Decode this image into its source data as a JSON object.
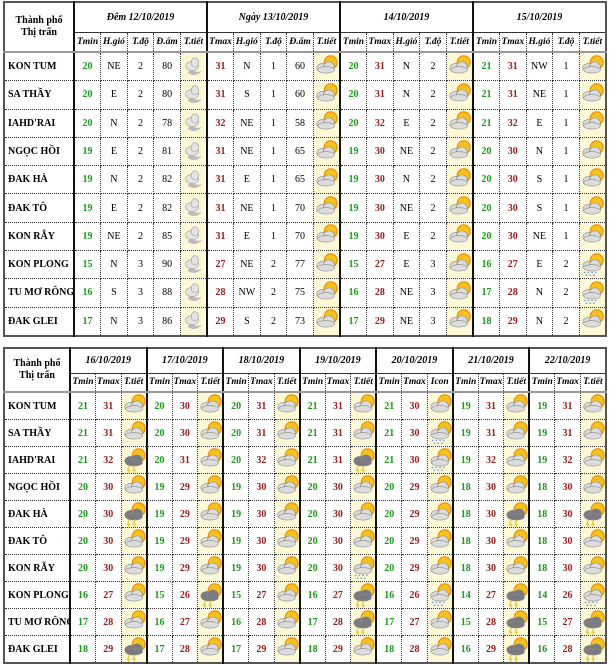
{
  "colors": {
    "tmin": "#1c9a1c",
    "tmax": "#9a1c1c",
    "icon_bg": "#fdf8d6"
  },
  "cities": [
    "KON TUM",
    "SA THẦY",
    "IAHD'RAI",
    "NGỌC HỒI",
    "ĐAK HÀ",
    "ĐAK TÔ",
    "KON RẪY",
    "KON PLONG",
    "TU MƠ RÔNG",
    "ĐAK GLEI"
  ],
  "table1": {
    "city_header": [
      "Thành phố",
      "Thị trấn"
    ],
    "blocks": [
      {
        "title": "Đêm 12/10/2019",
        "columns": [
          "Tmin",
          "H.gió",
          "T.độ",
          "Đ.ẩm",
          "T.tiết"
        ],
        "types": [
          "tmin",
          "t",
          "t",
          "t",
          "ic"
        ],
        "rows": [
          [
            "20",
            "NE",
            "2",
            "80",
            "night-cloud"
          ],
          [
            "20",
            "E",
            "2",
            "80",
            "night-cloud"
          ],
          [
            "20",
            "N",
            "2",
            "78",
            "night-cloud"
          ],
          [
            "19",
            "E",
            "2",
            "81",
            "night-cloud"
          ],
          [
            "19",
            "N",
            "2",
            "82",
            "night-cloud"
          ],
          [
            "19",
            "E",
            "2",
            "82",
            "night-cloud"
          ],
          [
            "19",
            "NE",
            "2",
            "85",
            "night-cloud"
          ],
          [
            "15",
            "N",
            "3",
            "90",
            "night-cloud"
          ],
          [
            "16",
            "S",
            "3",
            "88",
            "night-cloud"
          ],
          [
            "17",
            "N",
            "3",
            "86",
            "night-cloud"
          ]
        ]
      },
      {
        "title": "Ngày 13/10/2019",
        "columns": [
          "Tmax",
          "H.gió",
          "T.độ",
          "Đ.ẩm",
          "T.tiết"
        ],
        "types": [
          "tmax",
          "t",
          "t",
          "t",
          "ic"
        ],
        "rows": [
          [
            "31",
            "N",
            "1",
            "60",
            "partly-cloudy"
          ],
          [
            "31",
            "S",
            "1",
            "60",
            "partly-cloudy"
          ],
          [
            "32",
            "NE",
            "1",
            "58",
            "partly-cloudy"
          ],
          [
            "31",
            "NE",
            "1",
            "65",
            "partly-cloudy"
          ],
          [
            "31",
            "E",
            "1",
            "65",
            "partly-cloudy"
          ],
          [
            "31",
            "NE",
            "1",
            "70",
            "partly-cloudy"
          ],
          [
            "31",
            "E",
            "1",
            "70",
            "partly-cloudy"
          ],
          [
            "27",
            "NE",
            "2",
            "77",
            "partly-cloudy"
          ],
          [
            "28",
            "NW",
            "2",
            "75",
            "partly-cloudy"
          ],
          [
            "29",
            "S",
            "2",
            "73",
            "partly-cloudy"
          ]
        ]
      },
      {
        "title": "14/10/2019",
        "columns": [
          "Tmin",
          "Tmax",
          "H.gió",
          "T.độ",
          "T.tiết"
        ],
        "types": [
          "tmin",
          "tmax",
          "t",
          "t",
          "ic"
        ],
        "rows": [
          [
            "20",
            "31",
            "N",
            "2",
            "partly-cloudy"
          ],
          [
            "20",
            "31",
            "N",
            "2",
            "partly-cloudy"
          ],
          [
            "20",
            "32",
            "E",
            "2",
            "partly-cloudy"
          ],
          [
            "19",
            "30",
            "NE",
            "2",
            "partly-cloudy"
          ],
          [
            "19",
            "30",
            "N",
            "2",
            "partly-cloudy"
          ],
          [
            "19",
            "30",
            "NE",
            "2",
            "partly-cloudy"
          ],
          [
            "19",
            "30",
            "E",
            "2",
            "partly-cloudy"
          ],
          [
            "15",
            "27",
            "E",
            "3",
            "partly-cloudy"
          ],
          [
            "16",
            "28",
            "NE",
            "3",
            "partly-cloudy"
          ],
          [
            "17",
            "29",
            "NE",
            "3",
            "partly-cloudy"
          ]
        ]
      },
      {
        "title": "15/10/2019",
        "columns": [
          "Tmin",
          "Tmax",
          "H.gió",
          "T.độ",
          "T.tiết"
        ],
        "types": [
          "tmin",
          "tmax",
          "t",
          "t",
          "ic"
        ],
        "rows": [
          [
            "21",
            "31",
            "NW",
            "1",
            "partly-cloudy"
          ],
          [
            "21",
            "31",
            "NE",
            "1",
            "partly-cloudy"
          ],
          [
            "21",
            "32",
            "E",
            "1",
            "partly-cloudy"
          ],
          [
            "20",
            "30",
            "N",
            "1",
            "partly-cloudy"
          ],
          [
            "20",
            "30",
            "S",
            "1",
            "partly-cloudy"
          ],
          [
            "20",
            "30",
            "S",
            "1",
            "partly-cloudy"
          ],
          [
            "20",
            "30",
            "NE",
            "1",
            "partly-cloudy"
          ],
          [
            "16",
            "27",
            "E",
            "2",
            "rain"
          ],
          [
            "17",
            "28",
            "N",
            "2",
            "rain"
          ],
          [
            "18",
            "29",
            "N",
            "2",
            "partly-cloudy"
          ]
        ]
      }
    ]
  },
  "table2": {
    "city_header": [
      "Thành phố",
      "Thị trấn"
    ],
    "blocks": [
      {
        "title": "16/10/2019",
        "columns": [
          "Tmin",
          "Tmax",
          "T.tiết"
        ],
        "types": [
          "tmin",
          "tmax",
          "ic"
        ],
        "rows": [
          [
            "21",
            "31",
            "partly-cloudy"
          ],
          [
            "21",
            "31",
            "partly-cloudy"
          ],
          [
            "21",
            "32",
            "thunderstorm"
          ],
          [
            "20",
            "30",
            "partly-cloudy"
          ],
          [
            "20",
            "30",
            "thunderstorm"
          ],
          [
            "20",
            "30",
            "partly-cloudy"
          ],
          [
            "20",
            "30",
            "partly-cloudy"
          ],
          [
            "16",
            "27",
            "partly-cloudy"
          ],
          [
            "17",
            "28",
            "partly-cloudy"
          ],
          [
            "18",
            "29",
            "thunderstorm"
          ]
        ]
      },
      {
        "title": "17/10/2019",
        "columns": [
          "Tmin",
          "Tmax",
          "T.tiết"
        ],
        "types": [
          "tmin",
          "tmax",
          "ic"
        ],
        "rows": [
          [
            "20",
            "30",
            "partly-cloudy"
          ],
          [
            "20",
            "30",
            "partly-cloudy"
          ],
          [
            "20",
            "31",
            "partly-cloudy"
          ],
          [
            "19",
            "29",
            "partly-cloudy"
          ],
          [
            "19",
            "29",
            "partly-cloudy"
          ],
          [
            "19",
            "29",
            "partly-cloudy"
          ],
          [
            "19",
            "29",
            "partly-cloudy"
          ],
          [
            "15",
            "26",
            "thunderstorm"
          ],
          [
            "16",
            "27",
            "partly-cloudy"
          ],
          [
            "17",
            "28",
            "partly-cloudy"
          ]
        ]
      },
      {
        "title": "18/10/2019",
        "columns": [
          "Tmin",
          "Tmax",
          "T.tiết"
        ],
        "types": [
          "tmin",
          "tmax",
          "ic"
        ],
        "rows": [
          [
            "20",
            "31",
            "partly-cloudy"
          ],
          [
            "20",
            "31",
            "partly-cloudy"
          ],
          [
            "20",
            "32",
            "partly-cloudy"
          ],
          [
            "19",
            "30",
            "partly-cloudy"
          ],
          [
            "19",
            "30",
            "partly-cloudy"
          ],
          [
            "19",
            "30",
            "partly-cloudy"
          ],
          [
            "19",
            "30",
            "partly-cloudy"
          ],
          [
            "15",
            "27",
            "partly-cloudy"
          ],
          [
            "16",
            "28",
            "partly-cloudy"
          ],
          [
            "17",
            "29",
            "partly-cloudy"
          ]
        ]
      },
      {
        "title": "19/10/2019",
        "columns": [
          "Tmin",
          "Tmax",
          "T.tiết"
        ],
        "types": [
          "tmin",
          "tmax",
          "ic"
        ],
        "rows": [
          [
            "21",
            "31",
            "partly-cloudy"
          ],
          [
            "21",
            "31",
            "partly-cloudy"
          ],
          [
            "21",
            "31",
            "thunderstorm"
          ],
          [
            "20",
            "30",
            "partly-cloudy"
          ],
          [
            "20",
            "30",
            "partly-cloudy"
          ],
          [
            "20",
            "30",
            "partly-cloudy"
          ],
          [
            "20",
            "30",
            "rain"
          ],
          [
            "16",
            "27",
            "thunderstorm"
          ],
          [
            "17",
            "28",
            "thunderstorm"
          ],
          [
            "18",
            "29",
            "partly-cloudy"
          ]
        ]
      },
      {
        "title": "20/10/2019",
        "columns": [
          "Tmin",
          "Tmax",
          "Icon"
        ],
        "types": [
          "tmin",
          "tmax",
          "ic"
        ],
        "rows": [
          [
            "21",
            "30",
            "partly-cloudy"
          ],
          [
            "21",
            "30",
            "rain"
          ],
          [
            "21",
            "30",
            "rain"
          ],
          [
            "20",
            "29",
            "partly-cloudy"
          ],
          [
            "20",
            "29",
            "partly-cloudy"
          ],
          [
            "20",
            "29",
            "partly-cloudy"
          ],
          [
            "20",
            "29",
            "partly-cloudy"
          ],
          [
            "16",
            "26",
            "rain"
          ],
          [
            "17",
            "27",
            "partly-cloudy"
          ],
          [
            "18",
            "28",
            "partly-cloudy"
          ]
        ]
      },
      {
        "title": "21/10/2019",
        "columns": [
          "Tmin",
          "Tmax",
          "T.tiết"
        ],
        "types": [
          "tmin",
          "tmax",
          "ic"
        ],
        "rows": [
          [
            "19",
            "31",
            "partly-cloudy"
          ],
          [
            "19",
            "31",
            "partly-cloudy"
          ],
          [
            "19",
            "32",
            "partly-cloudy"
          ],
          [
            "18",
            "30",
            "partly-cloudy"
          ],
          [
            "18",
            "30",
            "thunderstorm"
          ],
          [
            "18",
            "30",
            "partly-cloudy"
          ],
          [
            "18",
            "30",
            "partly-cloudy"
          ],
          [
            "14",
            "27",
            "thunderstorm"
          ],
          [
            "15",
            "28",
            "thunderstorm"
          ],
          [
            "16",
            "29",
            "thunderstorm"
          ]
        ]
      },
      {
        "title": "22/10/2019",
        "columns": [
          "Tmin",
          "Tmax",
          "T.tiết"
        ],
        "types": [
          "tmin",
          "tmax",
          "ic"
        ],
        "rows": [
          [
            "19",
            "31",
            "partly-cloudy"
          ],
          [
            "19",
            "31",
            "partly-cloudy"
          ],
          [
            "19",
            "32",
            "partly-cloudy"
          ],
          [
            "18",
            "30",
            "partly-cloudy"
          ],
          [
            "18",
            "30",
            "thunderstorm"
          ],
          [
            "18",
            "30",
            "partly-cloudy"
          ],
          [
            "18",
            "30",
            "partly-cloudy"
          ],
          [
            "14",
            "26",
            "rain"
          ],
          [
            "15",
            "27",
            "thunderstorm"
          ],
          [
            "16",
            "28",
            "thunderstorm"
          ]
        ]
      }
    ]
  }
}
